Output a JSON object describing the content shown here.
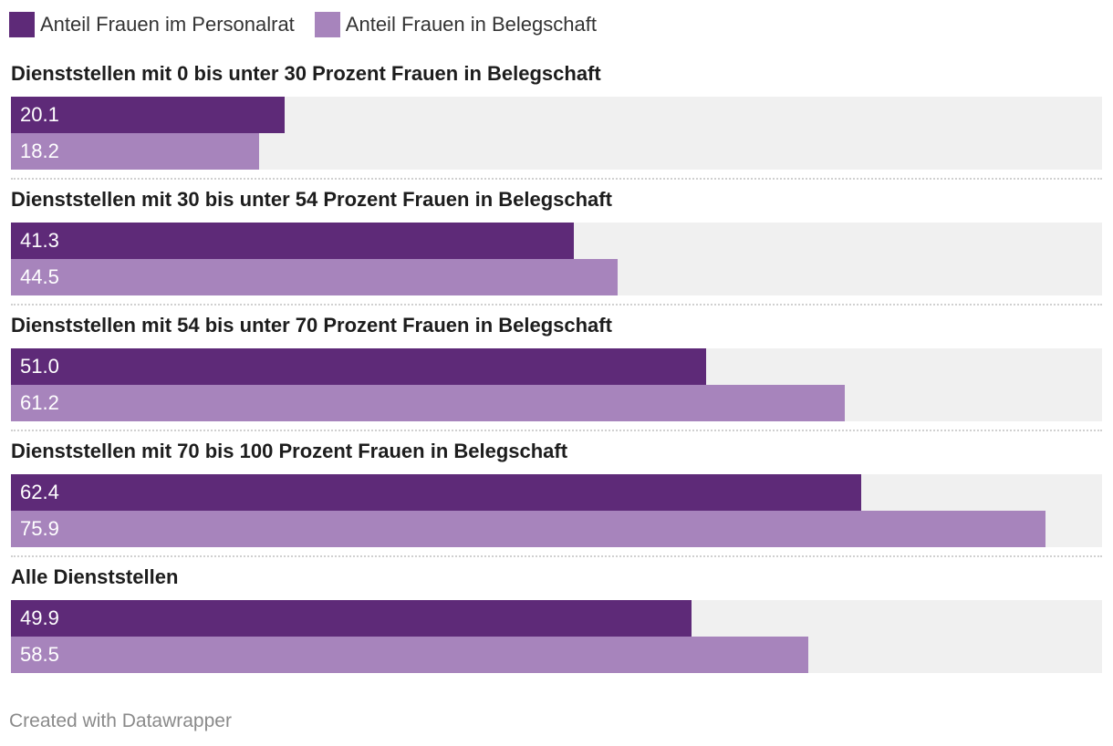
{
  "chart_data": {
    "type": "bar",
    "orientation": "horizontal",
    "categories": [
      "Dienststellen mit 0 bis unter 30 Prozent Frauen in Belegschaft",
      "Dienststellen mit 30 bis unter 54 Prozent Frauen in Belegschaft",
      "Dienststellen mit 54 bis unter 70 Prozent Frauen in Belegschaft",
      "Dienststellen mit 70 bis 100 Prozent Frauen in Belegschaft",
      "Alle Dienststellen"
    ],
    "series": [
      {
        "name": "Anteil Frauen im Personalrat",
        "color": "#5e2a78",
        "values": [
          20.1,
          41.3,
          51.0,
          62.4,
          49.9
        ],
        "labels": [
          "20.1",
          "41.3",
          "51.0",
          "62.4",
          "49.9"
        ]
      },
      {
        "name": "Anteil Frauen in Belegschaft",
        "color": "#a784bc",
        "values": [
          18.2,
          44.5,
          61.2,
          75.9,
          58.5
        ],
        "labels": [
          "18.2",
          "44.5",
          "61.2",
          "75.9",
          "58.5"
        ]
      }
    ],
    "xlim": [
      0,
      80
    ],
    "legend": "top-left",
    "grid": false,
    "background_color": "#f0f0f0"
  },
  "footer": {
    "credit": "Created with Datawrapper"
  }
}
